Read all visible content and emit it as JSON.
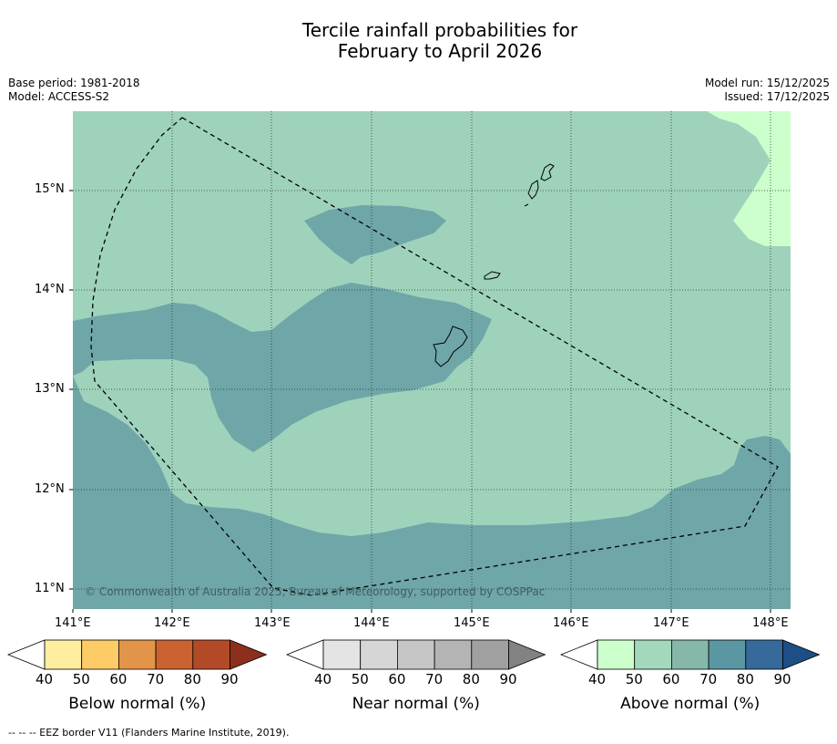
{
  "title_line1": "Tercile rainfall probabilities for",
  "title_line2": "February to April 2026",
  "meta_left": [
    "Base period: 1981-2018",
    "Model: ACCESS-S2"
  ],
  "meta_right": [
    "Model run: 15/12/2025",
    "Issued: 17/12/2025"
  ],
  "copyright": "© Commonwealth of Australia 2025, Bureau of Meteorology, supported by COSPPac",
  "lat_labels": [
    "15°N",
    "14°N",
    "13°N",
    "12°N",
    "11°N"
  ],
  "lon_labels": [
    "141°E",
    "142°E",
    "143°E",
    "144°E",
    "145°E",
    "146°E",
    "147°E",
    "148°E"
  ],
  "colorbars": [
    {
      "label": "Below normal (%)",
      "ticks": [
        "40",
        "50",
        "60",
        "70",
        "80",
        "90"
      ],
      "colors": [
        "#ffffff",
        "#fdeea0",
        "#fdcc66",
        "#e29548",
        "#cb6231",
        "#b24a28",
        "#8c2f1c"
      ]
    },
    {
      "label": "Near normal (%)",
      "ticks": [
        "40",
        "50",
        "60",
        "70",
        "80",
        "90"
      ],
      "colors": [
        "#ffffff",
        "#e4e4e4",
        "#d6d6d6",
        "#c6c6c6",
        "#b4b4b4",
        "#a0a0a0",
        "#828282"
      ]
    },
    {
      "label": "Above normal (%)",
      "ticks": [
        "40",
        "50",
        "60",
        "70",
        "80",
        "90"
      ],
      "colors": [
        "#ffffff",
        "#ccffcc",
        "#a2d8bb",
        "#86b8aa",
        "#5b97a3",
        "#356a9a",
        "#1d4f86"
      ]
    }
  ],
  "footer": "--  --  -- EEZ border V11 (Flanders Marine Institute, 2019).",
  "map_colors": {
    "above_50_60": "#9ed2bb",
    "above_60_70": "#6fa6a8",
    "above_40_50": "#ccffcc"
  }
}
